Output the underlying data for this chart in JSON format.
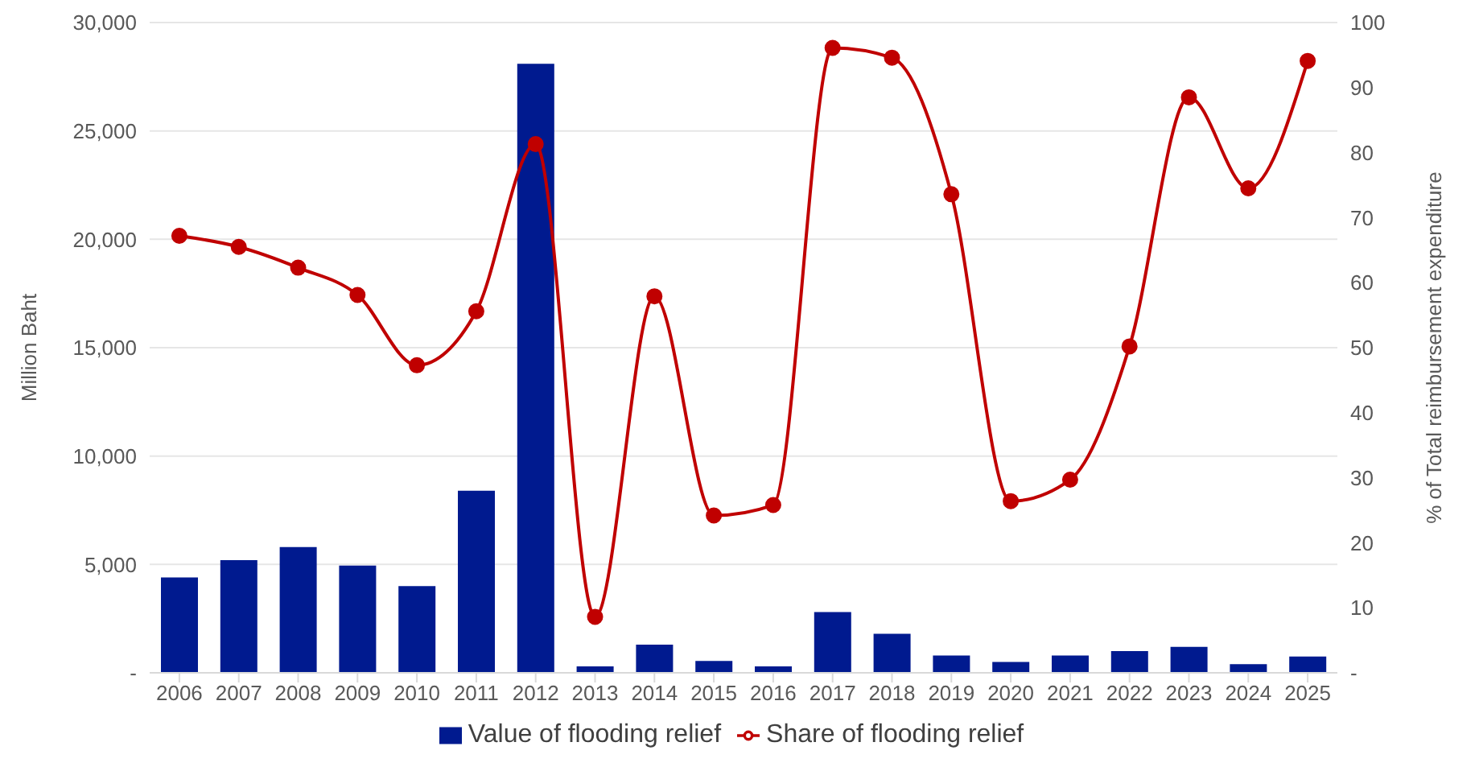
{
  "chart_data": {
    "type": "bar",
    "ylabel": "Million Baht",
    "y2label": "% of Total reimbursement expenditure",
    "categories": [
      "2006",
      "2007",
      "2008",
      "2009",
      "2010",
      "2011",
      "2012",
      "2013",
      "2014",
      "2015",
      "2016",
      "2017",
      "2018",
      "2019",
      "2020",
      "2021",
      "2022",
      "2023",
      "2024",
      "2025"
    ],
    "series": [
      {
        "name": "Value of flooding relief",
        "color": "#001a8f",
        "values": [
          4400,
          5200,
          5800,
          4950,
          4000,
          8400,
          28100,
          300,
          1300,
          550,
          300,
          2800,
          1800,
          800,
          500,
          800,
          1000,
          1200,
          400,
          750
        ]
      },
      {
        "name": "Share of flooding relief",
        "type": "line",
        "axis": "y2",
        "color": "#c00000",
        "marker": "circle",
        "values": [
          67.2,
          65.5,
          62.3,
          58.1,
          47.3,
          55.6,
          81.3,
          8.6,
          57.9,
          24.2,
          25.8,
          96.1,
          94.6,
          73.6,
          26.4,
          29.7,
          50.2,
          88.5,
          74.5,
          94.1
        ]
      }
    ],
    "ylim": [
      0,
      30000
    ],
    "yticks": [
      {
        "value": 0,
        "label": "-"
      },
      {
        "value": 5000,
        "label": "5,000"
      },
      {
        "value": 10000,
        "label": "10,000"
      },
      {
        "value": 15000,
        "label": "15,000"
      },
      {
        "value": 20000,
        "label": "20,000"
      },
      {
        "value": 25000,
        "label": "25,000"
      },
      {
        "value": 30000,
        "label": "30,000"
      }
    ],
    "y2lim": [
      0,
      100
    ],
    "y2ticks": [
      {
        "value": 0,
        "label": "-"
      },
      10,
      20,
      30,
      40,
      50,
      60,
      70,
      80,
      90,
      100
    ],
    "grid": "y",
    "legend": "bottom"
  }
}
